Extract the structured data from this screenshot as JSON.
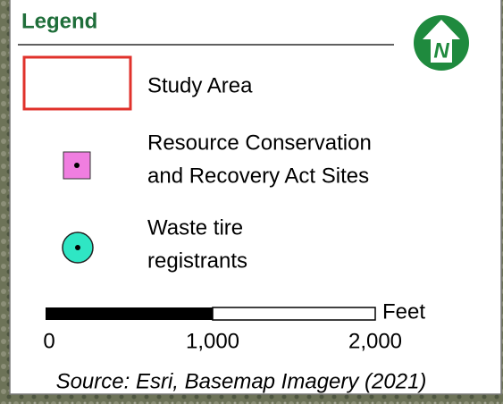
{
  "legend": {
    "title": "Legend",
    "north_arrow": {
      "label": "N"
    },
    "items": [
      {
        "lines": [
          "Study Area"
        ]
      },
      {
        "lines": [
          "Resource Conservation",
          "and Recovery Act Sites"
        ]
      },
      {
        "lines": [
          "Waste tire",
          "registrants"
        ]
      }
    ],
    "scale_bar": {
      "unit": "Feet",
      "labels": [
        "0",
        "1,000",
        "2,000"
      ]
    },
    "source": "Source: Esri, Basemap Imagery (2021)"
  }
}
